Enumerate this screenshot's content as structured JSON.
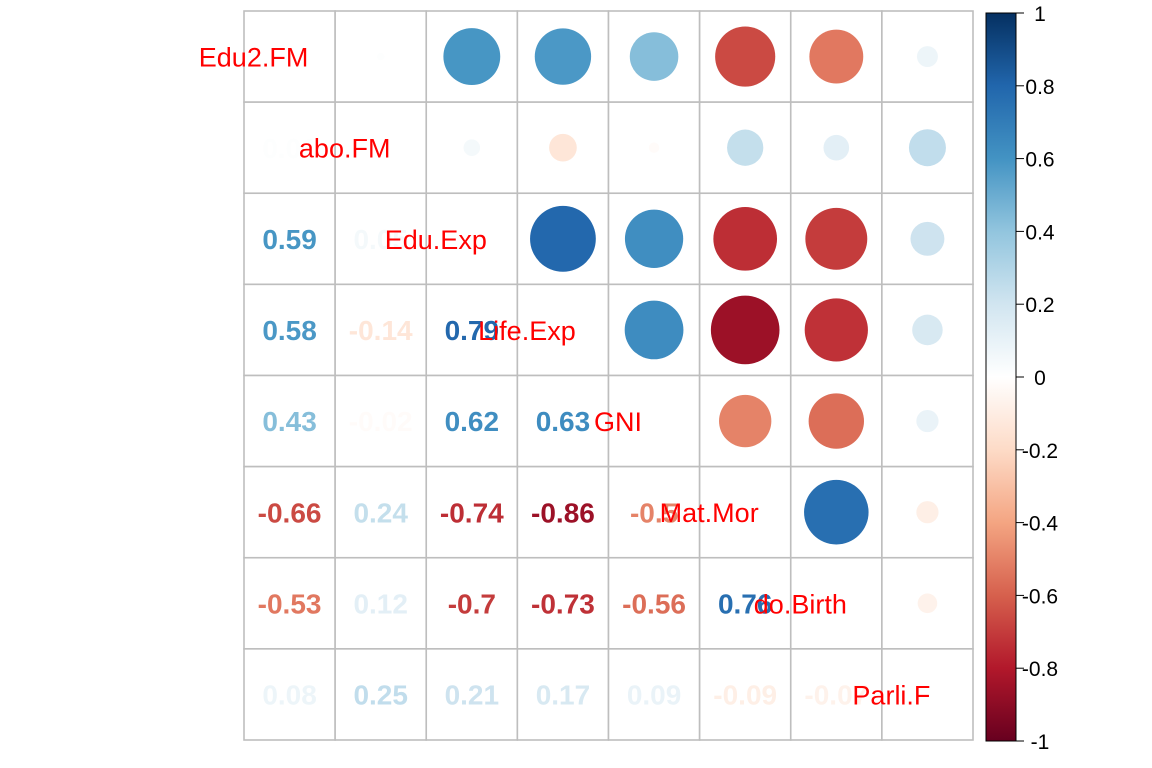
{
  "chart_data": {
    "type": "heatmap",
    "style": "correlation matrix (upper: circles, lower: numbers)",
    "variables": [
      "Edu2.FM",
      "Labo.FM",
      "Edu.Exp",
      "Life.Exp",
      "GNI",
      "Mat.Mor",
      "Ado.Birth",
      "Parli.F"
    ],
    "diagonal_labels": [
      "Edu2.FM",
      "abo.FM",
      "Edu.Exp",
      "Life.Exp",
      "GNI",
      "Mat.Mor",
      "do.Birth",
      "Parli.F"
    ],
    "matrix": [
      [
        1,
        0.01,
        0.59,
        0.58,
        0.43,
        -0.66,
        -0.53,
        0.08
      ],
      [
        0.01,
        1,
        0.05,
        -0.14,
        -0.02,
        0.24,
        0.12,
        0.25
      ],
      [
        0.59,
        0.05,
        1,
        0.79,
        0.62,
        -0.74,
        -0.7,
        0.21
      ],
      [
        0.58,
        -0.14,
        0.79,
        1,
        0.63,
        -0.86,
        -0.73,
        0.17
      ],
      [
        0.43,
        -0.02,
        0.62,
        0.63,
        1,
        -0.5,
        -0.56,
        0.09
      ],
      [
        -0.66,
        0.24,
        -0.74,
        -0.86,
        -0.5,
        1,
        0.76,
        -0.09
      ],
      [
        -0.53,
        0.12,
        -0.7,
        -0.73,
        -0.56,
        0.76,
        1,
        -0.07
      ],
      [
        0.08,
        0.25,
        0.21,
        0.17,
        0.09,
        -0.09,
        -0.07,
        1
      ]
    ],
    "lower_labels": [
      [],
      [
        "0.01"
      ],
      [
        "0.59",
        "0.05"
      ],
      [
        "0.58",
        "-0.14",
        "0.79"
      ],
      [
        "0.43",
        "-0.02",
        "0.62",
        "0.63"
      ],
      [
        "-0.66",
        "0.24",
        "-0.74",
        "-0.86",
        "-0.5"
      ],
      [
        "-0.53",
        "0.12",
        "-0.7",
        "-0.73",
        "-0.56",
        "0.76"
      ],
      [
        "0.08",
        "0.25",
        "0.21",
        "0.17",
        "0.09",
        "-0.09",
        "-0.07"
      ]
    ],
    "colorbar": {
      "range": [
        -1,
        1
      ],
      "ticks": [
        "1",
        "0.8",
        "0.6",
        "0.4",
        "0.2",
        "0",
        "-0.2",
        "-0.4",
        "-0.6",
        "-0.8",
        "-1"
      ],
      "colors": [
        "#67001F",
        "#B2182B",
        "#D6604D",
        "#F4A582",
        "#FDDBC7",
        "#FFFFFF",
        "#D1E5F0",
        "#92C5DE",
        "#4393C3",
        "#2166AC",
        "#053061"
      ]
    },
    "label_color": "#FF0000",
    "grid_color": "#BEBEBE"
  }
}
